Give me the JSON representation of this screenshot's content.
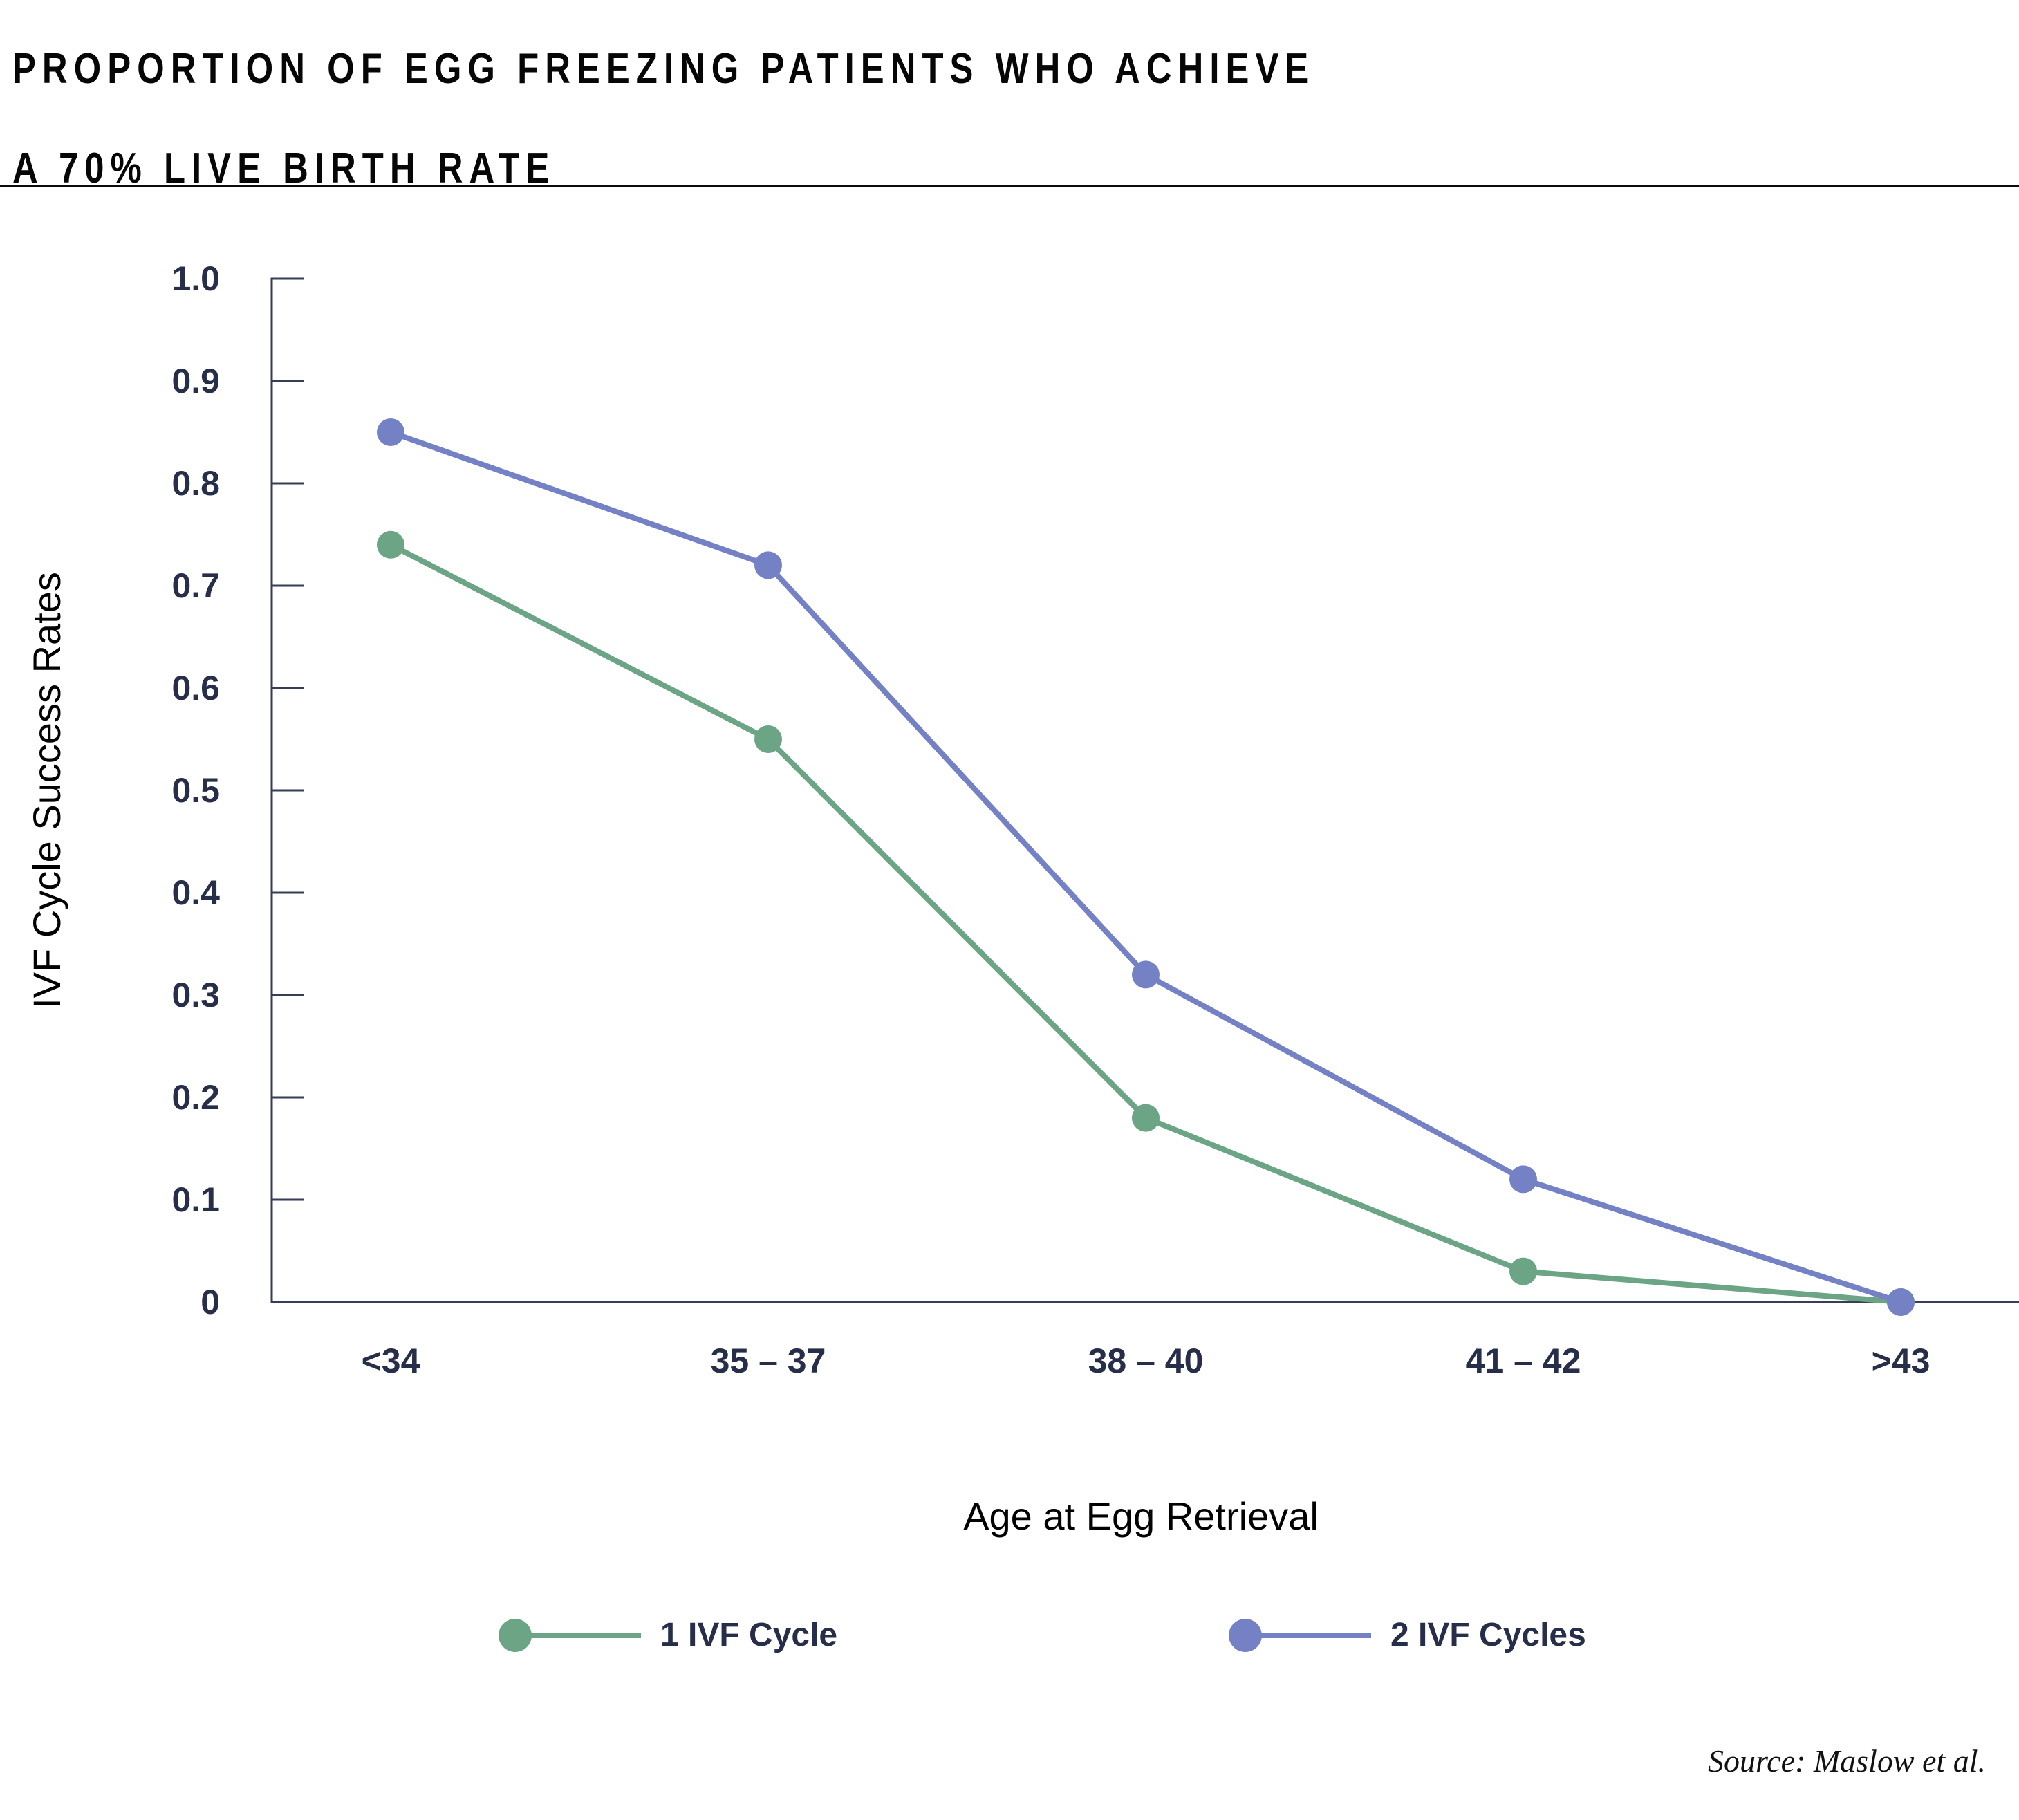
{
  "header": {
    "title_line1": "PROPORTION OF EGG FREEZING PATIENTS WHO ACHIEVE",
    "title_line2": "A 70% LIVE BIRTH RATE"
  },
  "source_note": "Source: Maslow et al.",
  "colors": {
    "series_1_green": "#6CA486",
    "series_2_blue": "#7482C5",
    "axis": "#363D55",
    "tick_label": "#272E49",
    "title_text": "#060606"
  },
  "chart_data": {
    "type": "line",
    "title": "PROPORTION OF EGG FREEZING PATIENTS WHO ACHIEVE A 70% LIVE BIRTH RATE",
    "xlabel": "Age at Egg Retrieval",
    "ylabel": "IVF Cycle Success Rates",
    "categories": [
      "<34",
      "35 – 37",
      "38 – 40",
      "41 – 42",
      ">43"
    ],
    "series": [
      {
        "name": "1 IVF Cycle",
        "color": "#6CA486",
        "values": [
          0.74,
          0.55,
          0.18,
          0.03,
          0
        ]
      },
      {
        "name": "2 IVF Cycles",
        "color": "#7482C5",
        "values": [
          0.85,
          0.72,
          0.32,
          0.12,
          0
        ]
      }
    ],
    "ylim": [
      0,
      1.0
    ],
    "y_ticks": [
      {
        "v": 1.0,
        "label": "1.0"
      },
      {
        "v": 0.9,
        "label": "0.9"
      },
      {
        "v": 0.8,
        "label": "0.8"
      },
      {
        "v": 0.7,
        "label": "0.7"
      },
      {
        "v": 0.6,
        "label": "0.6"
      },
      {
        "v": 0.5,
        "label": "0.5"
      },
      {
        "v": 0.4,
        "label": "0.4"
      },
      {
        "v": 0.3,
        "label": "0.3"
      },
      {
        "v": 0.2,
        "label": "0.2"
      },
      {
        "v": 0.1,
        "label": "0.1"
      },
      {
        "v": 0,
        "label": "0"
      }
    ],
    "grid": false,
    "legend_position": "bottom"
  }
}
